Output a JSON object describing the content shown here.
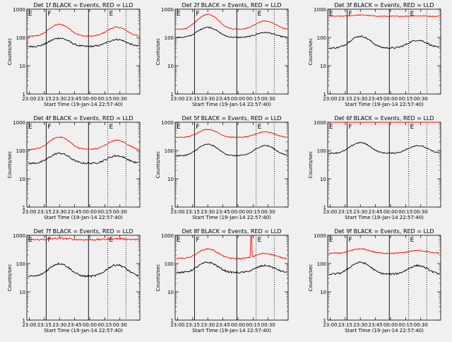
{
  "x_ticks": [
    "23:00",
    "23:15",
    "23:30",
    "23:45",
    "00:00",
    "00:15",
    "00:30"
  ],
  "x_tick_labels_8f": [
    "23:00",
    "23:15",
    "23:30",
    "23:45",
    "00:00",
    "00:15",
    "00:30"
  ],
  "y_ticks": [
    "1",
    "10",
    "100",
    "1000"
  ],
  "ylabel": "Counts/sec",
  "xlabel": "Start Time (19-Jan-14 22:57:40)",
  "colors": {
    "events": "#000000",
    "lld": "#ff0000",
    "background": "#f0f0f0"
  },
  "chart_data": [
    {
      "type": "line",
      "title": "Det 1f BLACK = Events, RED = LLD",
      "ylim": [
        1,
        1000
      ],
      "yscale": "log",
      "series": [
        {
          "name": "Events",
          "base": 48,
          "peaks": [
            [
              23.5,
              95
            ],
            [
              24.45,
              85
            ]
          ],
          "noise": 0.06
        },
        {
          "name": "LLD",
          "base": 110,
          "peaks": [
            [
              23.5,
              290
            ],
            [
              24.45,
              230
            ]
          ],
          "noise": 0.04
        }
      ],
      "vlines": [
        {
          "t": 23.28,
          "style": "solid",
          "label": "F"
        },
        {
          "t": 23.98,
          "style": "solid",
          "label": ""
        },
        {
          "t": 24.3,
          "style": "dotted",
          "label": "E"
        },
        {
          "t": 24.6,
          "style": "dotted",
          "label": ""
        }
      ],
      "start_label": "E"
    },
    {
      "type": "line",
      "title": "Det 2f BLACK = Events, RED = LLD",
      "ylim": [
        1,
        1000
      ],
      "yscale": "log",
      "series": [
        {
          "name": "Events",
          "base": 100,
          "peaks": [
            [
              23.5,
              230
            ],
            [
              24.45,
              150
            ]
          ],
          "noise": 0.04
        },
        {
          "name": "LLD",
          "base": 195,
          "peaks": [
            [
              23.5,
              650
            ],
            [
              24.45,
              380
            ]
          ],
          "noise": 0.03
        }
      ],
      "vlines": [
        {
          "t": 23.28,
          "style": "solid",
          "label": "F"
        },
        {
          "t": 23.98,
          "style": "solid",
          "label": ""
        },
        {
          "t": 24.3,
          "style": "dotted",
          "label": "E"
        },
        {
          "t": 24.6,
          "style": "dotted",
          "label": ""
        }
      ],
      "start_label": "E"
    },
    {
      "type": "line",
      "title": "Det 3f BLACK = Events, RED = LLD",
      "ylim": [
        1,
        1000
      ],
      "yscale": "log",
      "series": [
        {
          "name": "Events",
          "base": 42,
          "peaks": [
            [
              23.5,
              110
            ],
            [
              24.45,
              80
            ]
          ],
          "noise": 0.06
        },
        {
          "name": "LLD",
          "base": 560,
          "peaks": [
            [
              23.5,
              620
            ],
            [
              24.45,
              580
            ]
          ],
          "noise": 0.03
        }
      ],
      "vlines": [
        {
          "t": 23.28,
          "style": "solid",
          "label": "F"
        },
        {
          "t": 23.98,
          "style": "solid",
          "label": ""
        },
        {
          "t": 24.3,
          "style": "dotted",
          "label": "E"
        },
        {
          "t": 24.6,
          "style": "dotted",
          "label": ""
        }
      ],
      "start_label": "E"
    },
    {
      "type": "line",
      "title": "Det 4f BLACK = Events, RED = LLD",
      "ylim": [
        1,
        1000
      ],
      "yscale": "log",
      "series": [
        {
          "name": "Events",
          "base": 35,
          "peaks": [
            [
              23.5,
              80
            ],
            [
              24.45,
              65
            ]
          ],
          "noise": 0.06
        },
        {
          "name": "LLD",
          "base": 110,
          "peaks": [
            [
              23.5,
              300
            ],
            [
              24.45,
              230
            ]
          ],
          "noise": 0.04
        }
      ],
      "vlines": [
        {
          "t": 23.28,
          "style": "solid",
          "label": "F"
        },
        {
          "t": 23.98,
          "style": "solid",
          "label": ""
        },
        {
          "t": 24.3,
          "style": "dotted",
          "label": "E"
        },
        {
          "t": 24.6,
          "style": "dotted",
          "label": ""
        }
      ],
      "start_label": "E"
    },
    {
      "type": "line",
      "title": "Det 5f BLACK = Events, RED = LLD",
      "ylim": [
        1,
        1000
      ],
      "yscale": "log",
      "series": [
        {
          "name": "Events",
          "base": 65,
          "peaks": [
            [
              23.5,
              165
            ],
            [
              24.45,
              150
            ]
          ],
          "noise": 0.04
        },
        {
          "name": "LLD",
          "base": 290,
          "peaks": [
            [
              23.5,
              560
            ],
            [
              24.45,
              460
            ]
          ],
          "noise": 0.03
        }
      ],
      "vlines": [
        {
          "t": 23.28,
          "style": "solid",
          "label": "F"
        },
        {
          "t": 23.98,
          "style": "solid",
          "label": ""
        },
        {
          "t": 24.3,
          "style": "dotted",
          "label": "E"
        },
        {
          "t": 24.6,
          "style": "dotted",
          "label": ""
        }
      ],
      "start_label": "E"
    },
    {
      "type": "line",
      "title": "Det 6f BLACK = Events, RED = LLD",
      "ylim": [
        1,
        1000
      ],
      "yscale": "log",
      "series": [
        {
          "name": "Events",
          "base": 80,
          "peaks": [
            [
              23.5,
              190
            ],
            [
              24.45,
              150
            ]
          ],
          "noise": 0.04
        },
        {
          "name": "LLD",
          "base": 1050,
          "peaks": [],
          "noise": 0.0
        }
      ],
      "vlines": [
        {
          "t": 23.28,
          "style": "solid",
          "label": "F"
        },
        {
          "t": 23.98,
          "style": "solid",
          "label": ""
        },
        {
          "t": 24.3,
          "style": "dotted",
          "label": "E"
        },
        {
          "t": 24.6,
          "style": "dotted",
          "label": ""
        }
      ],
      "start_label": "E"
    },
    {
      "type": "line",
      "title": "Det 7f BLACK = Events, RED = LLD",
      "ylim": [
        1,
        1000
      ],
      "yscale": "log",
      "series": [
        {
          "name": "Events",
          "base": 35,
          "peaks": [
            [
              23.5,
              100
            ],
            [
              24.45,
              90
            ]
          ],
          "noise": 0.07
        },
        {
          "name": "LLD",
          "base": 700,
          "peaks": [
            [
              23.5,
              780
            ],
            [
              24.45,
              760
            ]
          ],
          "noise": 0.06
        }
      ],
      "vlines": [
        {
          "t": 23.28,
          "style": "solid",
          "label": "F"
        },
        {
          "t": 23.98,
          "style": "solid",
          "label": ""
        },
        {
          "t": 24.3,
          "style": "dotted",
          "label": "E"
        },
        {
          "t": 24.6,
          "style": "dotted",
          "label": ""
        }
      ],
      "start_label": "E"
    },
    {
      "type": "line",
      "title": "Det 8f BLACK = Events, RED = LLD",
      "ylim": [
        1,
        1000
      ],
      "yscale": "log",
      "series": [
        {
          "name": "Events",
          "base": 48,
          "peaks": [
            [
              23.5,
              110
            ],
            [
              24.45,
              85
            ]
          ],
          "noise": 0.06
        },
        {
          "name": "LLD",
          "base": 150,
          "peaks": [
            [
              23.5,
              330
            ],
            [
              24.45,
              230
            ]
          ],
          "noise": 0.04
        }
      ],
      "vlines": [
        {
          "t": 23.28,
          "style": "solid",
          "label": "F"
        },
        {
          "t": 23.98,
          "style": "solid",
          "label": ""
        },
        {
          "t": 24.3,
          "style": "dotted",
          "label": "E"
        },
        {
          "t": 24.6,
          "style": "dotted",
          "label": ""
        }
      ],
      "start_label": "E",
      "spike": {
        "t": 24.22,
        "value": 1000
      }
    },
    {
      "type": "line",
      "title": "Det 9f BLACK = Events, RED = LLD",
      "ylim": [
        1,
        1000
      ],
      "yscale": "log",
      "series": [
        {
          "name": "Events",
          "base": 42,
          "peaks": [
            [
              23.5,
              110
            ],
            [
              24.45,
              85
            ]
          ],
          "noise": 0.06
        },
        {
          "name": "LLD",
          "base": 230,
          "peaks": [
            [
              23.5,
              330
            ],
            [
              24.45,
              290
            ]
          ],
          "noise": 0.04
        }
      ],
      "vlines": [
        {
          "t": 23.28,
          "style": "solid",
          "label": "F"
        },
        {
          "t": 23.98,
          "style": "solid",
          "label": ""
        },
        {
          "t": 24.3,
          "style": "dotted",
          "label": "E"
        },
        {
          "t": 24.6,
          "style": "dotted",
          "label": ""
        }
      ],
      "start_label": "E"
    }
  ]
}
